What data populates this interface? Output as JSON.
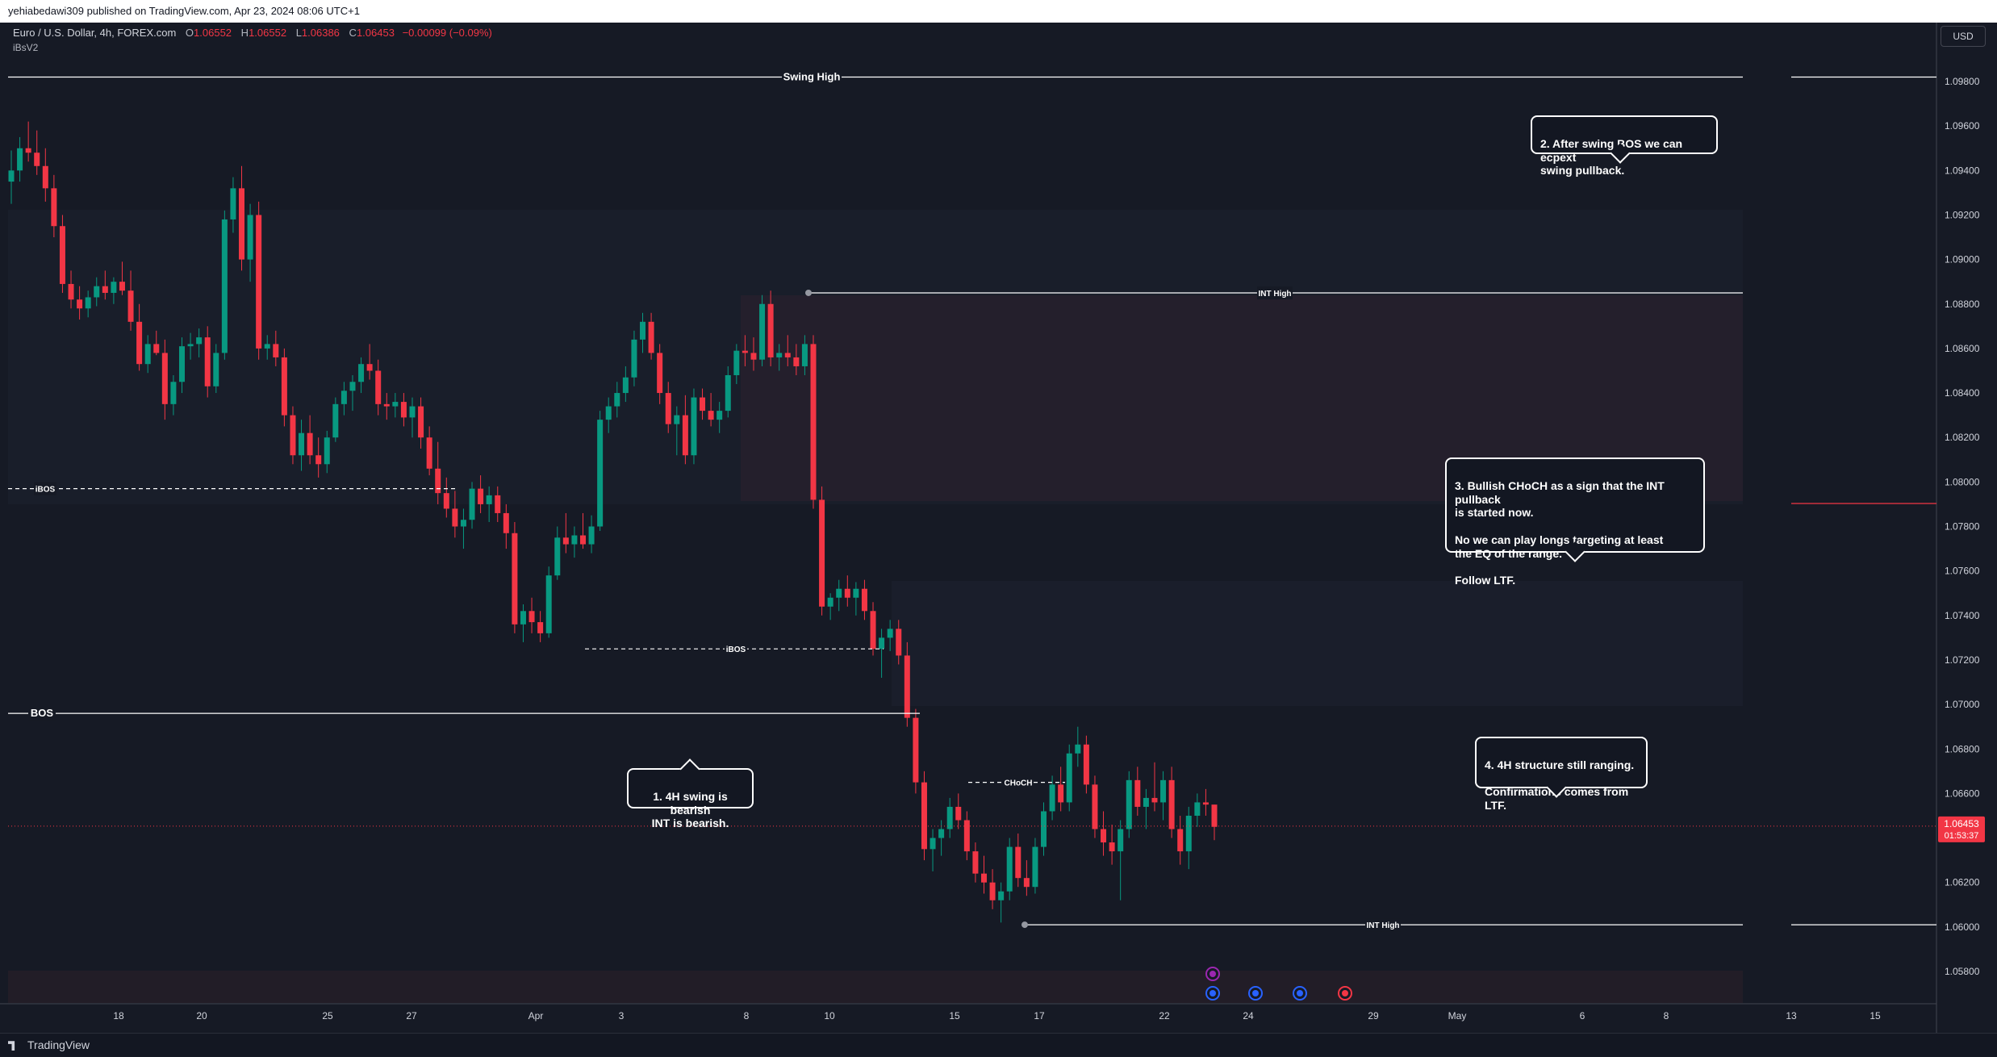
{
  "topbar": {
    "text": "yehiabedawi309 published on TradingView.com, Apr 23, 2024 08:06 UTC+1"
  },
  "legend": {
    "symbol": "Euro / U.S. Dollar, 4h, FOREX.com",
    "o_label": "O",
    "o": "1.06552",
    "h_label": "H",
    "h": "1.06552",
    "l_label": "L",
    "l": "1.06386",
    "c_label": "C",
    "c": "1.06453",
    "change": "−0.00099 (−0.09%)",
    "indicator": "iBsV2"
  },
  "currency": "USD",
  "price_tag": {
    "price": "1.06453",
    "countdown": "01:53:37"
  },
  "bottombar": {
    "brand": "TradingView"
  },
  "callouts": [
    {
      "text": "2. After swing BOS we can ecpext\nswing pullback."
    },
    {
      "text": "3. Bullish CHoCH as a sign that the INT pullback\nis started now.\n\nNo we can play longs targeting at least\nthe EQ of the range.\n\nFollow LTF."
    },
    {
      "text": "4. 4H structure still ranging.\n\nConfirmations comes from LTF."
    },
    {
      "text": "1. 4H swing is bearish\nINT is bearish."
    }
  ],
  "chart_data": {
    "type": "candlestick",
    "ylim": [
      1.057,
      1.0993
    ],
    "y_ticks": [
      "1.05800",
      "1.06000",
      "1.06200",
      "1.06400",
      "1.06600",
      "1.06800",
      "1.07000",
      "1.07200",
      "1.07400",
      "1.07600",
      "1.07800",
      "1.08000",
      "1.08200",
      "1.08400",
      "1.08600",
      "1.08800",
      "1.09000",
      "1.09200",
      "1.09400",
      "1.09600",
      "1.09800"
    ],
    "x_ticks": [
      "18",
      "20",
      "25",
      "27",
      "Apr",
      "3",
      "8",
      "10",
      "15",
      "17",
      "22",
      "24",
      "29",
      "May",
      "6",
      "8",
      "13",
      "15"
    ],
    "levels": [
      {
        "label": "Swing High",
        "price": 1.0982
      },
      {
        "label": "INT High",
        "price": 1.0885
      },
      {
        "label": "iBOS",
        "price": 1.0797
      },
      {
        "label": "iBOS",
        "price": 1.0725
      },
      {
        "label": "CHoCH",
        "price": 1.0665
      },
      {
        "label": "BOS",
        "price": 1.0696
      },
      {
        "label": "INT High",
        "price": 1.0601
      }
    ],
    "candles": [
      [
        1.0935,
        1.0949,
        1.0925,
        1.094
      ],
      [
        1.094,
        1.0955,
        1.0935,
        1.095
      ],
      [
        1.095,
        1.0962,
        1.0944,
        1.0948
      ],
      [
        1.0948,
        1.0958,
        1.0938,
        1.0942
      ],
      [
        1.0942,
        1.095,
        1.0926,
        1.0932
      ],
      [
        1.0932,
        1.0938,
        1.091,
        1.0915
      ],
      [
        1.0915,
        1.092,
        1.0885,
        1.0889
      ],
      [
        1.0889,
        1.0895,
        1.0878,
        1.0882
      ],
      [
        1.0882,
        1.0888,
        1.0873,
        1.0878
      ],
      [
        1.0878,
        1.0886,
        1.0874,
        1.0883
      ],
      [
        1.0883,
        1.0892,
        1.0879,
        1.0888
      ],
      [
        1.0888,
        1.0895,
        1.0882,
        1.0885
      ],
      [
        1.0885,
        1.0892,
        1.088,
        1.089
      ],
      [
        1.089,
        1.0899,
        1.0884,
        1.0886
      ],
      [
        1.0886,
        1.0895,
        1.0868,
        1.0872
      ],
      [
        1.0872,
        1.088,
        1.085,
        1.0853
      ],
      [
        1.0853,
        1.0866,
        1.0849,
        1.0862
      ],
      [
        1.0862,
        1.0868,
        1.0857,
        1.0858
      ],
      [
        1.0858,
        1.0864,
        1.0828,
        1.0835
      ],
      [
        1.0835,
        1.0848,
        1.083,
        1.0845
      ],
      [
        1.0845,
        1.0865,
        1.084,
        1.0861
      ],
      [
        1.0861,
        1.0867,
        1.0855,
        1.0862
      ],
      [
        1.0862,
        1.0869,
        1.0856,
        1.0865
      ],
      [
        1.0865,
        1.087,
        1.0838,
        1.0843
      ],
      [
        1.0843,
        1.0862,
        1.084,
        1.0858
      ],
      [
        1.0858,
        1.0922,
        1.0855,
        1.0918
      ],
      [
        1.0918,
        1.0937,
        1.0912,
        1.0932
      ],
      [
        1.0932,
        1.0942,
        1.0895,
        1.09
      ],
      [
        1.09,
        1.0925,
        1.089,
        1.092
      ],
      [
        1.092,
        1.0926,
        1.0855,
        1.086
      ],
      [
        1.086,
        1.0866,
        1.0855,
        1.0862
      ],
      [
        1.0862,
        1.0868,
        1.0852,
        1.0856
      ],
      [
        1.0856,
        1.086,
        1.0825,
        1.083
      ],
      [
        1.083,
        1.0834,
        1.0808,
        1.0812
      ],
      [
        1.0812,
        1.0828,
        1.0805,
        1.0822
      ],
      [
        1.0822,
        1.083,
        1.0808,
        1.0812
      ],
      [
        1.0812,
        1.082,
        1.0802,
        1.0808
      ],
      [
        1.0808,
        1.0823,
        1.0804,
        1.082
      ],
      [
        1.082,
        1.0838,
        1.0818,
        1.0835
      ],
      [
        1.0835,
        1.0845,
        1.083,
        1.0841
      ],
      [
        1.0841,
        1.0848,
        1.0832,
        1.0845
      ],
      [
        1.0845,
        1.0856,
        1.084,
        1.0853
      ],
      [
        1.0853,
        1.0862,
        1.0846,
        1.085
      ],
      [
        1.085,
        1.0855,
        1.083,
        1.0835
      ],
      [
        1.0835,
        1.084,
        1.0828,
        1.0834
      ],
      [
        1.0834,
        1.084,
        1.0829,
        1.0836
      ],
      [
        1.0836,
        1.084,
        1.0825,
        1.0829
      ],
      [
        1.0829,
        1.0838,
        1.082,
        1.0834
      ],
      [
        1.0834,
        1.0838,
        1.0815,
        1.082
      ],
      [
        1.082,
        1.0825,
        1.0803,
        1.0806
      ],
      [
        1.0806,
        1.0818,
        1.079,
        1.0795
      ],
      [
        1.0795,
        1.0802,
        1.0784,
        1.0788
      ],
      [
        1.0788,
        1.0796,
        1.0775,
        1.078
      ],
      [
        1.078,
        1.0788,
        1.077,
        1.0783
      ],
      [
        1.0783,
        1.08,
        1.0779,
        1.0797
      ],
      [
        1.0797,
        1.0803,
        1.0786,
        1.079
      ],
      [
        1.079,
        1.0798,
        1.0782,
        1.0794
      ],
      [
        1.0794,
        1.0798,
        1.0782,
        1.0786
      ],
      [
        1.0786,
        1.079,
        1.077,
        1.0777
      ],
      [
        1.0777,
        1.0782,
        1.0732,
        1.0736
      ],
      [
        1.0736,
        1.0745,
        1.0728,
        1.0742
      ],
      [
        1.0742,
        1.0748,
        1.0732,
        1.0737
      ],
      [
        1.0737,
        1.0742,
        1.0728,
        1.0732
      ],
      [
        1.0732,
        1.0762,
        1.073,
        1.0758
      ],
      [
        1.0758,
        1.078,
        1.0756,
        1.0775
      ],
      [
        1.0775,
        1.0786,
        1.0768,
        1.0772
      ],
      [
        1.0772,
        1.078,
        1.0766,
        1.0776
      ],
      [
        1.0776,
        1.0786,
        1.077,
        1.0772
      ],
      [
        1.0772,
        1.0785,
        1.0768,
        1.078
      ],
      [
        1.078,
        1.0832,
        1.0778,
        1.0828
      ],
      [
        1.0828,
        1.0838,
        1.0822,
        1.0834
      ],
      [
        1.0834,
        1.0845,
        1.0829,
        1.084
      ],
      [
        1.084,
        1.0852,
        1.0836,
        1.0847
      ],
      [
        1.0847,
        1.0868,
        1.0843,
        1.0864
      ],
      [
        1.0864,
        1.0876,
        1.0858,
        1.0872
      ],
      [
        1.0872,
        1.0876,
        1.0855,
        1.0858
      ],
      [
        1.0858,
        1.0862,
        1.0835,
        1.084
      ],
      [
        1.084,
        1.0845,
        1.0822,
        1.0826
      ],
      [
        1.0826,
        1.0834,
        1.0812,
        1.083
      ],
      [
        1.083,
        1.0839,
        1.0808,
        1.0812
      ],
      [
        1.0812,
        1.0842,
        1.0808,
        1.0838
      ],
      [
        1.0838,
        1.0842,
        1.0828,
        1.0832
      ],
      [
        1.0832,
        1.084,
        1.0825,
        1.0828
      ],
      [
        1.0828,
        1.0836,
        1.0822,
        1.0832
      ],
      [
        1.0832,
        1.0852,
        1.0829,
        1.0848
      ],
      [
        1.0848,
        1.0862,
        1.0844,
        1.0859
      ],
      [
        1.0859,
        1.0866,
        1.0852,
        1.0858
      ],
      [
        1.0858,
        1.0865,
        1.085,
        1.0855
      ],
      [
        1.0855,
        1.0884,
        1.0852,
        1.088
      ],
      [
        1.088,
        1.0886,
        1.0852,
        1.0856
      ],
      [
        1.0856,
        1.0862,
        1.085,
        1.0858
      ],
      [
        1.0858,
        1.0866,
        1.0852,
        1.0856
      ],
      [
        1.0856,
        1.0862,
        1.0848,
        1.0852
      ],
      [
        1.0852,
        1.0866,
        1.0848,
        1.0862
      ],
      [
        1.0862,
        1.0866,
        1.0788,
        1.0792
      ],
      [
        1.0792,
        1.0798,
        1.074,
        1.0744
      ],
      [
        1.0744,
        1.075,
        1.0738,
        1.0748
      ],
      [
        1.0748,
        1.0756,
        1.0742,
        1.0752
      ],
      [
        1.0752,
        1.0758,
        1.0744,
        1.0748
      ],
      [
        1.0748,
        1.0755,
        1.074,
        1.0752
      ],
      [
        1.0752,
        1.0756,
        1.0738,
        1.0742
      ],
      [
        1.0742,
        1.0746,
        1.0722,
        1.0725
      ],
      [
        1.0725,
        1.0734,
        1.0712,
        1.073
      ],
      [
        1.073,
        1.0738,
        1.0724,
        1.0734
      ],
      [
        1.0734,
        1.0738,
        1.0718,
        1.0722
      ],
      [
        1.0722,
        1.0728,
        1.069,
        1.0694
      ],
      [
        1.0694,
        1.0698,
        1.066,
        1.0665
      ],
      [
        1.0665,
        1.067,
        1.063,
        1.0635
      ],
      [
        1.0635,
        1.0644,
        1.0625,
        1.064
      ],
      [
        1.064,
        1.0648,
        1.0632,
        1.0644
      ],
      [
        1.0644,
        1.0658,
        1.064,
        1.0654
      ],
      [
        1.0654,
        1.066,
        1.0644,
        1.0648
      ],
      [
        1.0648,
        1.0652,
        1.063,
        1.0634
      ],
      [
        1.0634,
        1.0638,
        1.062,
        1.0624
      ],
      [
        1.0624,
        1.0632,
        1.0615,
        1.062
      ],
      [
        1.062,
        1.0626,
        1.0608,
        1.0612
      ],
      [
        1.0612,
        1.062,
        1.0602,
        1.0616
      ],
      [
        1.0616,
        1.064,
        1.0612,
        1.0636
      ],
      [
        1.0636,
        1.0642,
        1.0618,
        1.0622
      ],
      [
        1.0622,
        1.063,
        1.0614,
        1.0618
      ],
      [
        1.0618,
        1.064,
        1.0615,
        1.0636
      ],
      [
        1.0636,
        1.0656,
        1.0632,
        1.0652
      ],
      [
        1.0652,
        1.0668,
        1.0648,
        1.0664
      ],
      [
        1.0664,
        1.0672,
        1.0652,
        1.0656
      ],
      [
        1.0656,
        1.0682,
        1.0652,
        1.0678
      ],
      [
        1.0678,
        1.069,
        1.0672,
        1.0682
      ],
      [
        1.0682,
        1.0686,
        1.066,
        1.0664
      ],
      [
        1.0664,
        1.0668,
        1.064,
        1.0644
      ],
      [
        1.0644,
        1.0652,
        1.0632,
        1.0638
      ],
      [
        1.0638,
        1.0646,
        1.0628,
        1.0634
      ],
      [
        1.0634,
        1.0648,
        1.0612,
        1.0644
      ],
      [
        1.0644,
        1.067,
        1.064,
        1.0666
      ],
      [
        1.0666,
        1.0672,
        1.065,
        1.0654
      ],
      [
        1.0654,
        1.0662,
        1.0644,
        1.0658
      ],
      [
        1.0658,
        1.0674,
        1.0652,
        1.0656
      ],
      [
        1.0656,
        1.067,
        1.0648,
        1.0666
      ],
      [
        1.0666,
        1.0672,
        1.064,
        1.0644
      ],
      [
        1.0644,
        1.065,
        1.0628,
        1.0634
      ],
      [
        1.0634,
        1.0654,
        1.0626,
        1.065
      ],
      [
        1.065,
        1.066,
        1.0645,
        1.0656
      ],
      [
        1.0656,
        1.0662,
        1.065,
        1.0655
      ],
      [
        1.0655,
        1.0655,
        1.0639,
        1.0645
      ]
    ]
  }
}
